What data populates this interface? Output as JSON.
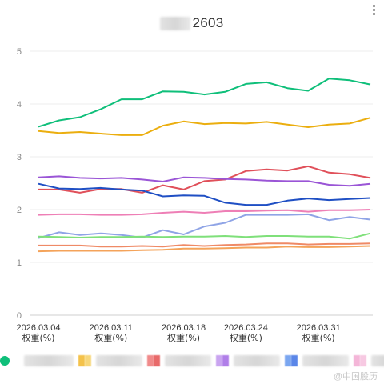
{
  "title_visible": "2603",
  "more_icon": "more-vertical-icon",
  "chart_data": {
    "type": "line",
    "title": "2603",
    "ylim": [
      0,
      5
    ],
    "yticks": [
      "0",
      "1",
      "2",
      "3",
      "4",
      "5"
    ],
    "x": [
      "2026.03.04",
      "2026.03.05",
      "2026.03.06",
      "2026.03.07",
      "2026.03.08",
      "2026.03.09",
      "2026.03.10",
      "2026.03.11",
      "2026.03.12",
      "2026.03.13",
      "2026.03.14",
      "2026.03.15",
      "2026.03.16",
      "2026.03.17",
      "2026.03.18",
      "2026.03.19",
      "2026.03.20",
      "2026.03.21",
      "2026.03.22",
      "2026.03.23",
      "2026.03.24",
      "2026.03.25",
      "2026.03.26",
      "2026.03.27",
      "2026.03.28",
      "2026.03.29",
      "2026.03.30",
      "2026.03.31"
    ],
    "xtick_labels": [
      {
        "date": "2026.03.04",
        "label": "2026.03.04",
        "sub": "权重(%)"
      },
      {
        "date": "2026.03.11",
        "label": "2026.03.11",
        "sub": "权重(%)"
      },
      {
        "date": "2026.03.18",
        "label": "2026.03.18",
        "sub": "权重(%)"
      },
      {
        "date": "2026.03.24",
        "label": "2026.03.24",
        "sub": "权重(%)"
      },
      {
        "date": "2026.03.31",
        "label": "2026.03.31",
        "sub": "权重(%)"
      }
    ],
    "grid": true,
    "legend_position": "bottom",
    "series": [
      {
        "color": "#0fbf7a",
        "points": [
          [
            "2026.03.04",
            3.57
          ],
          [
            "2026.03.06",
            3.69
          ],
          [
            "2026.03.08",
            3.75
          ],
          [
            "2026.03.10",
            3.9
          ],
          [
            "2026.03.12",
            4.09
          ],
          [
            "2026.03.14",
            4.09
          ],
          [
            "2026.03.16",
            4.24
          ],
          [
            "2026.03.18",
            4.23
          ],
          [
            "2026.03.20",
            4.18
          ],
          [
            "2026.03.22",
            4.23
          ],
          [
            "2026.03.24",
            4.38
          ],
          [
            "2026.03.26",
            4.41
          ],
          [
            "2026.03.28",
            4.3
          ],
          [
            "2026.03.30",
            4.25
          ],
          [
            "2026.04.01",
            4.48
          ],
          [
            "2026.04.03",
            4.45
          ],
          [
            "2026.04.05",
            4.37
          ]
        ]
      },
      {
        "color": "#ebae0f",
        "points": [
          [
            "2026.03.04",
            3.49
          ],
          [
            "2026.03.06",
            3.45
          ],
          [
            "2026.03.08",
            3.47
          ],
          [
            "2026.03.10",
            3.44
          ],
          [
            "2026.03.12",
            3.41
          ],
          [
            "2026.03.14",
            3.41
          ],
          [
            "2026.03.16",
            3.59
          ],
          [
            "2026.03.18",
            3.67
          ],
          [
            "2026.03.20",
            3.62
          ],
          [
            "2026.03.22",
            3.64
          ],
          [
            "2026.03.24",
            3.63
          ],
          [
            "2026.03.26",
            3.66
          ],
          [
            "2026.03.28",
            3.61
          ],
          [
            "2026.03.30",
            3.56
          ],
          [
            "2026.04.01",
            3.61
          ],
          [
            "2026.04.03",
            3.63
          ],
          [
            "2026.04.05",
            3.74
          ]
        ]
      },
      {
        "color": "#e0505a",
        "points": [
          [
            "2026.03.04",
            2.38
          ],
          [
            "2026.03.06",
            2.38
          ],
          [
            "2026.03.08",
            2.32
          ],
          [
            "2026.03.10",
            2.39
          ],
          [
            "2026.03.12",
            2.39
          ],
          [
            "2026.03.14",
            2.32
          ],
          [
            "2026.03.16",
            2.46
          ],
          [
            "2026.03.18",
            2.38
          ],
          [
            "2026.03.20",
            2.54
          ],
          [
            "2026.03.22",
            2.57
          ],
          [
            "2026.03.24",
            2.73
          ],
          [
            "2026.03.26",
            2.76
          ],
          [
            "2026.03.28",
            2.74
          ],
          [
            "2026.03.30",
            2.82
          ],
          [
            "2026.04.01",
            2.7
          ],
          [
            "2026.04.03",
            2.67
          ],
          [
            "2026.04.05",
            2.6
          ]
        ]
      },
      {
        "color": "#9a55d6",
        "points": [
          [
            "2026.03.04",
            2.61
          ],
          [
            "2026.03.06",
            2.63
          ],
          [
            "2026.03.08",
            2.6
          ],
          [
            "2026.03.10",
            2.59
          ],
          [
            "2026.03.12",
            2.6
          ],
          [
            "2026.03.14",
            2.57
          ],
          [
            "2026.03.16",
            2.53
          ],
          [
            "2026.03.18",
            2.61
          ],
          [
            "2026.03.20",
            2.6
          ],
          [
            "2026.03.22",
            2.58
          ],
          [
            "2026.03.24",
            2.57
          ],
          [
            "2026.03.26",
            2.55
          ],
          [
            "2026.03.28",
            2.54
          ],
          [
            "2026.03.30",
            2.54
          ],
          [
            "2026.04.01",
            2.47
          ],
          [
            "2026.04.03",
            2.45
          ],
          [
            "2026.04.05",
            2.49
          ]
        ]
      },
      {
        "color": "#1f4fc4",
        "points": [
          [
            "2026.03.04",
            2.49
          ],
          [
            "2026.03.06",
            2.4
          ],
          [
            "2026.03.08",
            2.39
          ],
          [
            "2026.03.10",
            2.41
          ],
          [
            "2026.03.12",
            2.38
          ],
          [
            "2026.03.14",
            2.36
          ],
          [
            "2026.03.16",
            2.25
          ],
          [
            "2026.03.18",
            2.27
          ],
          [
            "2026.03.20",
            2.26
          ],
          [
            "2026.03.22",
            2.13
          ],
          [
            "2026.03.24",
            2.09
          ],
          [
            "2026.03.26",
            2.09
          ],
          [
            "2026.03.28",
            2.17
          ],
          [
            "2026.03.30",
            2.21
          ],
          [
            "2026.04.01",
            2.18
          ],
          [
            "2026.04.03",
            2.2
          ],
          [
            "2026.04.05",
            2.22
          ]
        ]
      },
      {
        "color": "#ee7fb6",
        "points": [
          [
            "2026.03.04",
            1.9
          ],
          [
            "2026.03.06",
            1.91
          ],
          [
            "2026.03.08",
            1.91
          ],
          [
            "2026.03.10",
            1.9
          ],
          [
            "2026.03.12",
            1.9
          ],
          [
            "2026.03.14",
            1.91
          ],
          [
            "2026.03.16",
            1.94
          ],
          [
            "2026.03.18",
            1.96
          ],
          [
            "2026.03.20",
            1.94
          ],
          [
            "2026.03.22",
            1.97
          ],
          [
            "2026.03.24",
            1.97
          ],
          [
            "2026.03.26",
            1.98
          ],
          [
            "2026.03.28",
            1.99
          ],
          [
            "2026.03.30",
            1.96
          ],
          [
            "2026.04.01",
            1.99
          ],
          [
            "2026.04.03",
            1.99
          ],
          [
            "2026.04.05",
            2.0
          ]
        ]
      },
      {
        "color": "#8fa4e6",
        "points": [
          [
            "2026.03.04",
            1.46
          ],
          [
            "2026.03.06",
            1.57
          ],
          [
            "2026.03.08",
            1.52
          ],
          [
            "2026.03.10",
            1.55
          ],
          [
            "2026.03.12",
            1.52
          ],
          [
            "2026.03.14",
            1.47
          ],
          [
            "2026.03.16",
            1.61
          ],
          [
            "2026.03.18",
            1.53
          ],
          [
            "2026.03.20",
            1.68
          ],
          [
            "2026.03.22",
            1.75
          ],
          [
            "2026.03.24",
            1.9
          ],
          [
            "2026.03.26",
            1.9
          ],
          [
            "2026.03.28",
            1.9
          ],
          [
            "2026.03.30",
            1.91
          ],
          [
            "2026.04.01",
            1.8
          ],
          [
            "2026.04.03",
            1.86
          ],
          [
            "2026.04.05",
            1.81
          ]
        ]
      },
      {
        "color": "#7fe07a",
        "points": [
          [
            "2026.03.04",
            1.49
          ],
          [
            "2026.03.06",
            1.48
          ],
          [
            "2026.03.08",
            1.47
          ],
          [
            "2026.03.10",
            1.48
          ],
          [
            "2026.03.12",
            1.48
          ],
          [
            "2026.03.14",
            1.49
          ],
          [
            "2026.03.16",
            1.48
          ],
          [
            "2026.03.18",
            1.49
          ],
          [
            "2026.03.20",
            1.49
          ],
          [
            "2026.03.22",
            1.5
          ],
          [
            "2026.03.24",
            1.48
          ],
          [
            "2026.03.26",
            1.5
          ],
          [
            "2026.03.28",
            1.5
          ],
          [
            "2026.03.30",
            1.49
          ],
          [
            "2026.04.01",
            1.49
          ],
          [
            "2026.04.03",
            1.45
          ],
          [
            "2026.04.05",
            1.55
          ]
        ]
      },
      {
        "color": "#ef8a66",
        "points": [
          [
            "2026.03.04",
            1.32
          ],
          [
            "2026.03.06",
            1.32
          ],
          [
            "2026.03.08",
            1.32
          ],
          [
            "2026.03.10",
            1.3
          ],
          [
            "2026.03.12",
            1.3
          ],
          [
            "2026.03.14",
            1.31
          ],
          [
            "2026.03.16",
            1.3
          ],
          [
            "2026.03.18",
            1.33
          ],
          [
            "2026.03.20",
            1.31
          ],
          [
            "2026.03.22",
            1.33
          ],
          [
            "2026.03.24",
            1.34
          ],
          [
            "2026.03.26",
            1.36
          ],
          [
            "2026.03.28",
            1.36
          ],
          [
            "2026.03.30",
            1.34
          ],
          [
            "2026.04.01",
            1.35
          ],
          [
            "2026.04.03",
            1.35
          ],
          [
            "2026.04.05",
            1.36
          ]
        ]
      },
      {
        "color": "#f4a35a",
        "points": [
          [
            "2026.03.04",
            1.21
          ],
          [
            "2026.03.06",
            1.22
          ],
          [
            "2026.03.08",
            1.22
          ],
          [
            "2026.03.10",
            1.22
          ],
          [
            "2026.03.12",
            1.22
          ],
          [
            "2026.03.14",
            1.23
          ],
          [
            "2026.03.16",
            1.24
          ],
          [
            "2026.03.18",
            1.26
          ],
          [
            "2026.03.20",
            1.26
          ],
          [
            "2026.03.22",
            1.27
          ],
          [
            "2026.03.24",
            1.28
          ],
          [
            "2026.03.26",
            1.28
          ],
          [
            "2026.03.28",
            1.3
          ],
          [
            "2026.03.30",
            1.29
          ],
          [
            "2026.04.01",
            1.29
          ],
          [
            "2026.04.03",
            1.3
          ],
          [
            "2026.04.05",
            1.31
          ]
        ]
      }
    ]
  },
  "legend": {
    "dot_colors": [
      "#0fbf7a"
    ],
    "swatches": [
      [
        "#f4c24a",
        "#f7d77a"
      ],
      [
        "#f08a8a",
        "#e86a6a"
      ],
      [
        "#c9a4f0",
        "#b07ee8"
      ],
      [
        "#7aa6f0",
        "#5a86e8"
      ],
      [
        "#f4b6d8",
        "#f7c9e2"
      ]
    ]
  },
  "watermark": "@中国股历"
}
